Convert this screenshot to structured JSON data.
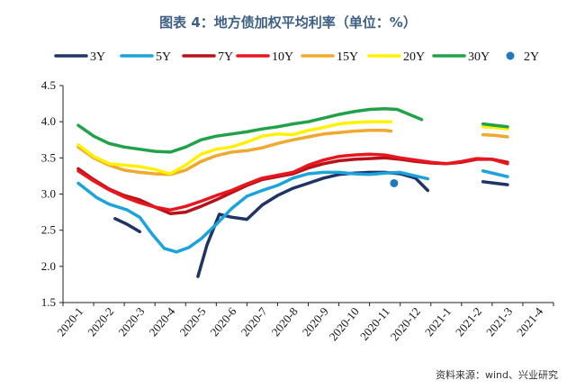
{
  "chart_data": {
    "type": "line",
    "title": "图表 4：地方债加权平均利率（单位：%）",
    "source": "资料来源：wind、兴业研究",
    "categories": [
      "2020-1",
      "2020-2",
      "2020-3",
      "2020-4",
      "2020-5",
      "2020-6",
      "2020-7",
      "2020-8",
      "2020-9",
      "2020-10",
      "2020-11",
      "2020-12",
      "2021-1",
      "2021-2",
      "2021-3",
      "2021-4"
    ],
    "ylim": [
      1.5,
      4.5
    ],
    "yticks": [
      "1.5",
      "2.0",
      "2.5",
      "3.0",
      "3.5",
      "4.0",
      "4.5"
    ],
    "grid": false,
    "legend_position": "top",
    "series": [
      {
        "name": "3Y",
        "color": "#1f3464",
        "segments": [
          [
            [
              1.2,
              2.66
            ],
            [
              1.6,
              2.58
            ],
            [
              2.0,
              2.48
            ]
          ],
          [
            [
              3.9,
              1.86
            ],
            [
              4.2,
              2.3
            ],
            [
              4.6,
              2.72
            ],
            [
              5.0,
              2.68
            ],
            [
              5.5,
              2.65
            ],
            [
              6.0,
              2.85
            ],
            [
              6.5,
              2.98
            ],
            [
              7.0,
              3.08
            ],
            [
              7.5,
              3.15
            ],
            [
              8.0,
              3.22
            ],
            [
              8.5,
              3.27
            ],
            [
              9.0,
              3.29
            ],
            [
              9.5,
              3.3
            ],
            [
              10.0,
              3.3
            ],
            [
              10.5,
              3.28
            ],
            [
              11.0,
              3.22
            ],
            [
              11.4,
              3.05
            ]
          ],
          [
            [
              13.2,
              3.17
            ],
            [
              13.6,
              3.15
            ],
            [
              14.0,
              3.13
            ]
          ]
        ]
      },
      {
        "name": "5Y",
        "color": "#1ca3dc",
        "segments": [
          [
            [
              0,
              3.15
            ],
            [
              0.6,
              2.95
            ],
            [
              1.0,
              2.86
            ],
            [
              1.6,
              2.78
            ],
            [
              2.0,
              2.68
            ],
            [
              2.4,
              2.45
            ],
            [
              2.8,
              2.25
            ],
            [
              3.2,
              2.2
            ],
            [
              3.6,
              2.26
            ],
            [
              4.0,
              2.38
            ],
            [
              4.5,
              2.58
            ],
            [
              5.0,
              2.8
            ],
            [
              5.5,
              2.97
            ],
            [
              6.0,
              3.05
            ],
            [
              6.5,
              3.12
            ],
            [
              7.0,
              3.22
            ],
            [
              7.5,
              3.28
            ],
            [
              8.0,
              3.3
            ],
            [
              8.5,
              3.3
            ],
            [
              9.0,
              3.28
            ],
            [
              9.5,
              3.27
            ],
            [
              10.0,
              3.29
            ],
            [
              10.5,
              3.3
            ],
            [
              11.0,
              3.25
            ],
            [
              11.4,
              3.21
            ]
          ],
          [
            [
              13.2,
              3.32
            ],
            [
              13.6,
              3.28
            ],
            [
              14.0,
              3.24
            ]
          ]
        ]
      },
      {
        "name": "7Y",
        "color": "#b5121b",
        "segments": [
          [
            [
              0,
              3.35
            ],
            [
              0.5,
              3.2
            ],
            [
              1.0,
              3.07
            ],
            [
              1.5,
              2.98
            ],
            [
              2.0,
              2.92
            ],
            [
              2.5,
              2.82
            ],
            [
              3.0,
              2.73
            ],
            [
              3.5,
              2.75
            ],
            [
              4.0,
              2.83
            ],
            [
              4.5,
              2.92
            ],
            [
              5.0,
              3.02
            ],
            [
              5.5,
              3.12
            ],
            [
              6.0,
              3.2
            ],
            [
              6.5,
              3.24
            ],
            [
              7.0,
              3.28
            ],
            [
              7.5,
              3.36
            ],
            [
              8.0,
              3.42
            ],
            [
              8.5,
              3.46
            ],
            [
              9.0,
              3.48
            ],
            [
              9.5,
              3.49
            ],
            [
              10.0,
              3.5
            ],
            [
              10.5,
              3.48
            ],
            [
              11.0,
              3.45
            ],
            [
              11.5,
              3.43
            ],
            [
              12.0,
              3.42
            ],
            [
              12.5,
              3.44
            ],
            [
              13.0,
              3.48
            ],
            [
              13.5,
              3.48
            ],
            [
              14.0,
              3.44
            ]
          ]
        ]
      },
      {
        "name": "10Y",
        "color": "#e8161e",
        "segments": [
          [
            [
              0,
              3.32
            ],
            [
              0.5,
              3.18
            ],
            [
              1.0,
              3.06
            ],
            [
              1.5,
              2.96
            ],
            [
              2.0,
              2.88
            ],
            [
              2.5,
              2.82
            ],
            [
              3.0,
              2.78
            ],
            [
              3.5,
              2.83
            ],
            [
              4.0,
              2.9
            ],
            [
              4.5,
              2.98
            ],
            [
              5.0,
              3.05
            ],
            [
              5.5,
              3.14
            ],
            [
              6.0,
              3.22
            ],
            [
              6.5,
              3.26
            ],
            [
              7.0,
              3.3
            ],
            [
              7.5,
              3.4
            ],
            [
              8.0,
              3.47
            ],
            [
              8.5,
              3.52
            ],
            [
              9.0,
              3.54
            ],
            [
              9.5,
              3.55
            ],
            [
              10.0,
              3.54
            ],
            [
              10.5,
              3.5
            ],
            [
              11.0,
              3.47
            ],
            [
              11.5,
              3.44
            ],
            [
              12.0,
              3.42
            ],
            [
              12.5,
              3.45
            ],
            [
              13.0,
              3.49
            ],
            [
              13.5,
              3.48
            ],
            [
              14.0,
              3.42
            ]
          ]
        ]
      },
      {
        "name": "15Y",
        "color": "#f0a830",
        "segments": [
          [
            [
              0,
              3.65
            ],
            [
              0.5,
              3.5
            ],
            [
              1.0,
              3.4
            ],
            [
              1.5,
              3.33
            ],
            [
              2.0,
              3.3
            ],
            [
              2.5,
              3.28
            ],
            [
              3.0,
              3.27
            ],
            [
              3.5,
              3.33
            ],
            [
              4.0,
              3.45
            ],
            [
              4.5,
              3.53
            ],
            [
              5.0,
              3.58
            ],
            [
              5.5,
              3.6
            ],
            [
              6.0,
              3.64
            ],
            [
              6.5,
              3.7
            ],
            [
              7.0,
              3.75
            ],
            [
              7.5,
              3.79
            ],
            [
              8.0,
              3.83
            ],
            [
              8.5,
              3.85
            ],
            [
              9.0,
              3.87
            ],
            [
              9.5,
              3.88
            ],
            [
              10.0,
              3.88
            ],
            [
              10.2,
              3.87
            ]
          ],
          [
            [
              13.2,
              3.82
            ],
            [
              13.6,
              3.81
            ],
            [
              14.0,
              3.79
            ]
          ]
        ]
      },
      {
        "name": "20Y",
        "color": "#fff200",
        "segments": [
          [
            [
              0,
              3.68
            ],
            [
              0.5,
              3.52
            ],
            [
              1.0,
              3.42
            ],
            [
              1.5,
              3.4
            ],
            [
              2.0,
              3.38
            ],
            [
              2.5,
              3.34
            ],
            [
              3.0,
              3.28
            ],
            [
              3.5,
              3.4
            ],
            [
              4.0,
              3.55
            ],
            [
              4.5,
              3.62
            ],
            [
              5.0,
              3.65
            ],
            [
              5.5,
              3.72
            ],
            [
              6.0,
              3.8
            ],
            [
              6.5,
              3.83
            ],
            [
              7.0,
              3.82
            ],
            [
              7.5,
              3.88
            ],
            [
              8.0,
              3.92
            ],
            [
              8.5,
              3.97
            ],
            [
              9.0,
              3.99
            ],
            [
              9.5,
              4.0
            ],
            [
              10.0,
              4.0
            ],
            [
              10.2,
              4.0
            ]
          ],
          [
            [
              13.2,
              3.93
            ],
            [
              13.6,
              3.92
            ],
            [
              14.0,
              3.9
            ]
          ]
        ]
      },
      {
        "name": "30Y",
        "color": "#21a14a",
        "segments": [
          [
            [
              0,
              3.95
            ],
            [
              0.5,
              3.8
            ],
            [
              1.0,
              3.7
            ],
            [
              1.5,
              3.65
            ],
            [
              2.0,
              3.62
            ],
            [
              2.5,
              3.59
            ],
            [
              3.0,
              3.58
            ],
            [
              3.5,
              3.65
            ],
            [
              4.0,
              3.75
            ],
            [
              4.5,
              3.8
            ],
            [
              5.0,
              3.83
            ],
            [
              5.5,
              3.86
            ],
            [
              6.0,
              3.9
            ],
            [
              6.5,
              3.93
            ],
            [
              7.0,
              3.97
            ],
            [
              7.5,
              4.0
            ],
            [
              8.0,
              4.05
            ],
            [
              8.5,
              4.1
            ],
            [
              9.0,
              4.14
            ],
            [
              9.5,
              4.17
            ],
            [
              10.0,
              4.18
            ],
            [
              10.4,
              4.17
            ],
            [
              10.8,
              4.1
            ],
            [
              11.2,
              4.03
            ]
          ],
          [
            [
              13.2,
              3.97
            ],
            [
              13.6,
              3.95
            ],
            [
              14.0,
              3.93
            ]
          ]
        ]
      },
      {
        "name": "2Y",
        "color": "#1f78c0",
        "type": "scatter",
        "points": [
          [
            10.3,
            3.15
          ]
        ]
      }
    ]
  }
}
